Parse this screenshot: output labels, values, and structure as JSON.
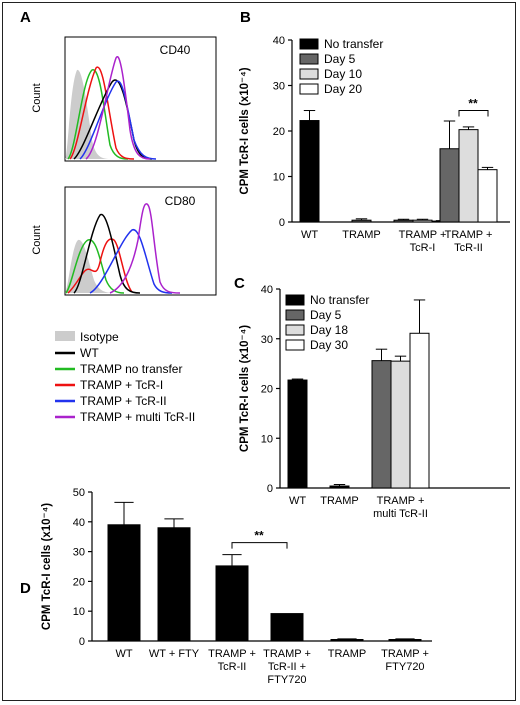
{
  "colors": {
    "isotype": "#cccccc",
    "wt": "#000000",
    "no_transfer": "#22bb22",
    "tcr1": "#ee1111",
    "tcr2": "#2233ee",
    "multi_tcr2": "#aa22cc",
    "dark_bar": "#000000",
    "day5_bar": "#666666",
    "day10_bar": "#dddddd",
    "day20_bar": "#ffffff"
  },
  "panel_a": {
    "label": "A",
    "hist_top": {
      "title": "CD40",
      "ylabel": "Count"
    },
    "hist_bottom": {
      "title": "CD80",
      "ylabel": "Count"
    },
    "legend": [
      "Isotype",
      "WT",
      "TRAMP no transfer",
      "TRAMP + TcR-I",
      "TRAMP + TcR-II",
      "TRAMP + multi TcR-II"
    ]
  },
  "chart_data": [
    {
      "id": "B",
      "type": "bar",
      "label": "B",
      "ylabel": "CPM TcR-I cells (x10⁻⁴)",
      "ylim": [
        0,
        40
      ],
      "yticks": [
        0,
        10,
        20,
        30,
        40
      ],
      "categories": [
        "WT",
        "TRAMP",
        "TRAMP + TcR-I",
        "TRAMP + TcR-II"
      ],
      "series": [
        {
          "name": "No transfer",
          "values": [
            22.3,
            null,
            null,
            null
          ],
          "errors": [
            2.2,
            null,
            null,
            null
          ]
        },
        {
          "name": "Day 5",
          "values": [
            null,
            0.4,
            0.4,
            16.1
          ],
          "errors": [
            null,
            0.3,
            0.2,
            6.1
          ]
        },
        {
          "name": "Day 10",
          "values": [
            null,
            null,
            0.4,
            20.3
          ],
          "errors": [
            null,
            null,
            0.2,
            0.6
          ]
        },
        {
          "name": "Day 20",
          "values": [
            null,
            null,
            0.2,
            11.5
          ],
          "errors": [
            null,
            null,
            0.1,
            0.5
          ]
        }
      ],
      "significance": "**",
      "legend_position": "top-right"
    },
    {
      "id": "C",
      "type": "bar",
      "label": "C",
      "ylabel": "CPM TcR-I cells (x10⁻⁴)",
      "ylim": [
        0,
        40
      ],
      "yticks": [
        0,
        10,
        20,
        30,
        40
      ],
      "categories": [
        "WT",
        "TRAMP",
        "TRAMP + multi TcR-II"
      ],
      "series": [
        {
          "name": "No transfer",
          "values": [
            21.7,
            0.4,
            null
          ],
          "errors": [
            0.2,
            0.3,
            null
          ]
        },
        {
          "name": "Day 5",
          "values": [
            null,
            null,
            25.6
          ],
          "errors": [
            null,
            null,
            2.3
          ]
        },
        {
          "name": "Day 18",
          "values": [
            null,
            null,
            25.5
          ],
          "errors": [
            null,
            null,
            1.0
          ]
        },
        {
          "name": "Day 30",
          "values": [
            null,
            null,
            31.1
          ],
          "errors": [
            null,
            null,
            6.7
          ]
        }
      ],
      "legend_position": "top-right"
    },
    {
      "id": "D",
      "type": "bar",
      "label": "D",
      "ylabel": "CPM TcR-I cells (x10⁻⁴)",
      "ylim": [
        0,
        50
      ],
      "yticks": [
        0,
        10,
        20,
        30,
        40,
        50
      ],
      "categories": [
        "WT",
        "WT + FTY",
        "TRAMP + TcR-II",
        "TRAMP + TcR-II + FTY720",
        "TRAMP",
        "TRAMP + FTY720"
      ],
      "category_lines": [
        [
          "WT"
        ],
        [
          "WT + FTY"
        ],
        [
          "TRAMP +",
          "TcR-II"
        ],
        [
          "TRAMP +",
          "TcR-II +",
          "FTY720"
        ],
        [
          "TRAMP"
        ],
        [
          "TRAMP +",
          "FTY720"
        ]
      ],
      "values": [
        39.0,
        38.0,
        25.2,
        9.2,
        0.5,
        0.5
      ],
      "errors": [
        7.5,
        3.0,
        3.8,
        0,
        0.2,
        0.2
      ],
      "significance": "**"
    }
  ]
}
